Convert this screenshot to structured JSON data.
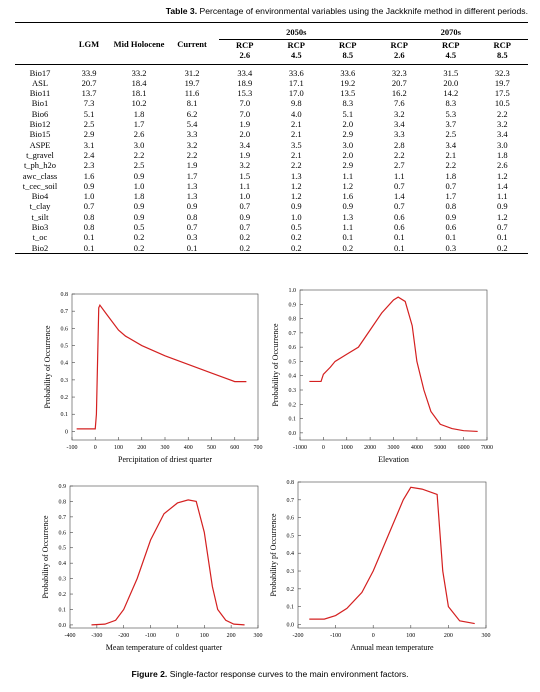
{
  "table": {
    "caption": {
      "label": "Table 3.",
      "text": "Percentage of environmental variables using the Jackknife method in different periods."
    },
    "columns": [
      "LGM",
      "Mid Holocene",
      "Current"
    ],
    "groups": [
      {
        "name": "2050s",
        "columns": [
          {
            "line1": "RCP",
            "line2": "2.6"
          },
          {
            "line1": "RCP",
            "line2": "4.5"
          },
          {
            "line1": "RCP",
            "line2": "8.5"
          }
        ]
      },
      {
        "name": "2070s",
        "columns": [
          {
            "line1": "RCP",
            "line2": "2.6"
          },
          {
            "line1": "RCP",
            "line2": "4.5"
          },
          {
            "line1": "RCP",
            "line2": "8.5"
          }
        ]
      }
    ],
    "rows": [
      [
        "Bio17",
        "33.9",
        "33.2",
        "31.2",
        "33.4",
        "33.6",
        "33.6",
        "32.3",
        "31.5",
        "32.3"
      ],
      [
        "ASL",
        "20.7",
        "18.4",
        "19.7",
        "18.9",
        "17.1",
        "19.2",
        "20.7",
        "20.0",
        "19.7"
      ],
      [
        "Bio11",
        "13.7",
        "18.1",
        "11.6",
        "15.3",
        "17.0",
        "13.5",
        "16.2",
        "14.2",
        "17.5"
      ],
      [
        "Bio1",
        "7.3",
        "10.2",
        "8.1",
        "7.0",
        "9.8",
        "8.3",
        "7.6",
        "8.3",
        "10.5"
      ],
      [
        "Bio6",
        "5.1",
        "1.8",
        "6.2",
        "7.0",
        "4.0",
        "5.1",
        "3.2",
        "5.3",
        "2.2"
      ],
      [
        "Bio12",
        "2.5",
        "1.7",
        "5.4",
        "1.9",
        "2.1",
        "2.0",
        "3.4",
        "3.7",
        "3.2"
      ],
      [
        "Bio15",
        "2.9",
        "2.6",
        "3.3",
        "2.0",
        "2.1",
        "2.9",
        "3.3",
        "2.5",
        "3.4"
      ],
      [
        "ASPE",
        "3.1",
        "3.0",
        "3.2",
        "3.4",
        "3.5",
        "3.0",
        "2.8",
        "3.4",
        "3.0"
      ],
      [
        "t_gravel",
        "2.4",
        "2.2",
        "2.2",
        "1.9",
        "2.1",
        "2.0",
        "2.2",
        "2.1",
        "1.8"
      ],
      [
        "t_ph_h2o",
        "2.3",
        "2.5",
        "1.9",
        "3.2",
        "2.2",
        "2.9",
        "2.7",
        "2.2",
        "2.6"
      ],
      [
        "awc_class",
        "1.6",
        "0.9",
        "1.7",
        "1.5",
        "1.3",
        "1.1",
        "1.1",
        "1.8",
        "1.2"
      ],
      [
        "t_cec_soil",
        "0.9",
        "1.0",
        "1.3",
        "1.1",
        "1.2",
        "1.2",
        "0.7",
        "0.7",
        "1.4"
      ],
      [
        "Bio4",
        "1.0",
        "1.8",
        "1.3",
        "1.0",
        "1.2",
        "1.6",
        "1.4",
        "1.7",
        "1.1"
      ],
      [
        "t_clay",
        "0.7",
        "0.9",
        "0.9",
        "0.7",
        "0.9",
        "0.9",
        "0.7",
        "0.8",
        "0.9"
      ],
      [
        "t_silt",
        "0.8",
        "0.9",
        "0.8",
        "0.9",
        "1.0",
        "1.3",
        "0.6",
        "0.9",
        "1.2"
      ],
      [
        "Bio3",
        "0.8",
        "0.5",
        "0.7",
        "0.7",
        "0.5",
        "1.1",
        "0.6",
        "0.6",
        "0.7"
      ],
      [
        "t_oc",
        "0.1",
        "0.2",
        "0.3",
        "0.2",
        "0.2",
        "0.1",
        "0.1",
        "0.1",
        "0.1"
      ],
      [
        "Bio2",
        "0.1",
        "0.2",
        "0.1",
        "0.2",
        "0.2",
        "0.2",
        "0.1",
        "0.3",
        "0.2"
      ]
    ]
  },
  "chart_data": [
    {
      "type": "line",
      "x_label": "Percipitation of driest quarter",
      "y_label": "Probability of Occurrence",
      "xlim": [
        -100,
        700
      ],
      "ylim": [
        -0.05,
        0.8
      ],
      "xticks": [
        -100,
        0,
        100,
        200,
        300,
        400,
        500,
        600,
        700
      ],
      "yticks": [
        0,
        0.1,
        0.2,
        0.3,
        0.4,
        0.5,
        0.6,
        0.7,
        0.8
      ],
      "x": [
        -80,
        0,
        5,
        15,
        20,
        50,
        100,
        130,
        200,
        300,
        400,
        500,
        600,
        650
      ],
      "values": [
        0.015,
        0.015,
        0.1,
        0.72,
        0.735,
        0.68,
        0.59,
        0.555,
        0.5,
        0.44,
        0.39,
        0.34,
        0.29,
        0.29
      ],
      "color": "#d42020"
    },
    {
      "type": "line",
      "x_label": "Elevation",
      "y_label": "Probability of Occurrence",
      "xlim": [
        -1000,
        7000
      ],
      "ylim": [
        -0.05,
        1.0
      ],
      "xticks": [
        -1000,
        0,
        1000,
        2000,
        3000,
        4000,
        5000,
        6000,
        7000
      ],
      "yticks": [
        {
          "value": 0,
          "label": "0.0"
        },
        0.1,
        0.2,
        0.3,
        0.4,
        0.5,
        0.6,
        0.7,
        0.8,
        0.9,
        {
          "value": 1,
          "label": "1.0"
        }
      ],
      "x": [
        -600,
        -100,
        0,
        300,
        500,
        1000,
        1500,
        2000,
        2500,
        3000,
        3200,
        3500,
        3800,
        4000,
        4300,
        4600,
        5000,
        5500,
        6000,
        6600
      ],
      "values": [
        0.36,
        0.36,
        0.41,
        0.46,
        0.5,
        0.55,
        0.6,
        0.72,
        0.84,
        0.93,
        0.95,
        0.92,
        0.75,
        0.5,
        0.3,
        0.15,
        0.06,
        0.03,
        0.015,
        0.01
      ],
      "color": "#d42020"
    },
    {
      "type": "line",
      "x_label": "Mean temperature of coldest quarter",
      "y_label": "Probability of Occurrence",
      "xlim": [
        -400,
        300
      ],
      "ylim": [
        -0.02,
        0.9
      ],
      "xticks": [
        -400,
        -300,
        -200,
        -100,
        0,
        100,
        200,
        300
      ],
      "yticks": [
        {
          "value": 0,
          "label": "0.0"
        },
        0.1,
        0.2,
        0.3,
        0.4,
        0.5,
        0.6,
        0.7,
        0.8,
        0.9
      ],
      "x": [
        -320,
        -270,
        -230,
        -200,
        -150,
        -100,
        -50,
        0,
        40,
        70,
        100,
        130,
        150,
        180,
        210,
        250
      ],
      "values": [
        0,
        0.005,
        0.03,
        0.1,
        0.3,
        0.55,
        0.72,
        0.79,
        0.81,
        0.8,
        0.6,
        0.25,
        0.1,
        0.03,
        0.005,
        0
      ],
      "color": "#d42020"
    },
    {
      "type": "line",
      "x_label": "Annual mean temperature",
      "y_label": "Probability pf Occurrence",
      "xlim": [
        -200,
        300
      ],
      "ylim": [
        -0.02,
        0.8
      ],
      "xticks": [
        -200,
        -100,
        0,
        100,
        200,
        300
      ],
      "yticks": [
        {
          "value": 0,
          "label": "0.0"
        },
        0.1,
        0.2,
        0.3,
        0.4,
        0.5,
        0.6,
        0.7,
        0.8
      ],
      "x": [
        -170,
        -130,
        -100,
        -70,
        -30,
        0,
        40,
        80,
        100,
        130,
        170,
        185,
        200,
        230,
        270
      ],
      "values": [
        0.03,
        0.03,
        0.05,
        0.09,
        0.18,
        0.3,
        0.5,
        0.7,
        0.77,
        0.76,
        0.73,
        0.3,
        0.1,
        0.02,
        0.005
      ],
      "color": "#d42020"
    }
  ],
  "figure_caption": {
    "label": "Figure 2.",
    "text": "Single-factor response curves to the main environment factors."
  }
}
